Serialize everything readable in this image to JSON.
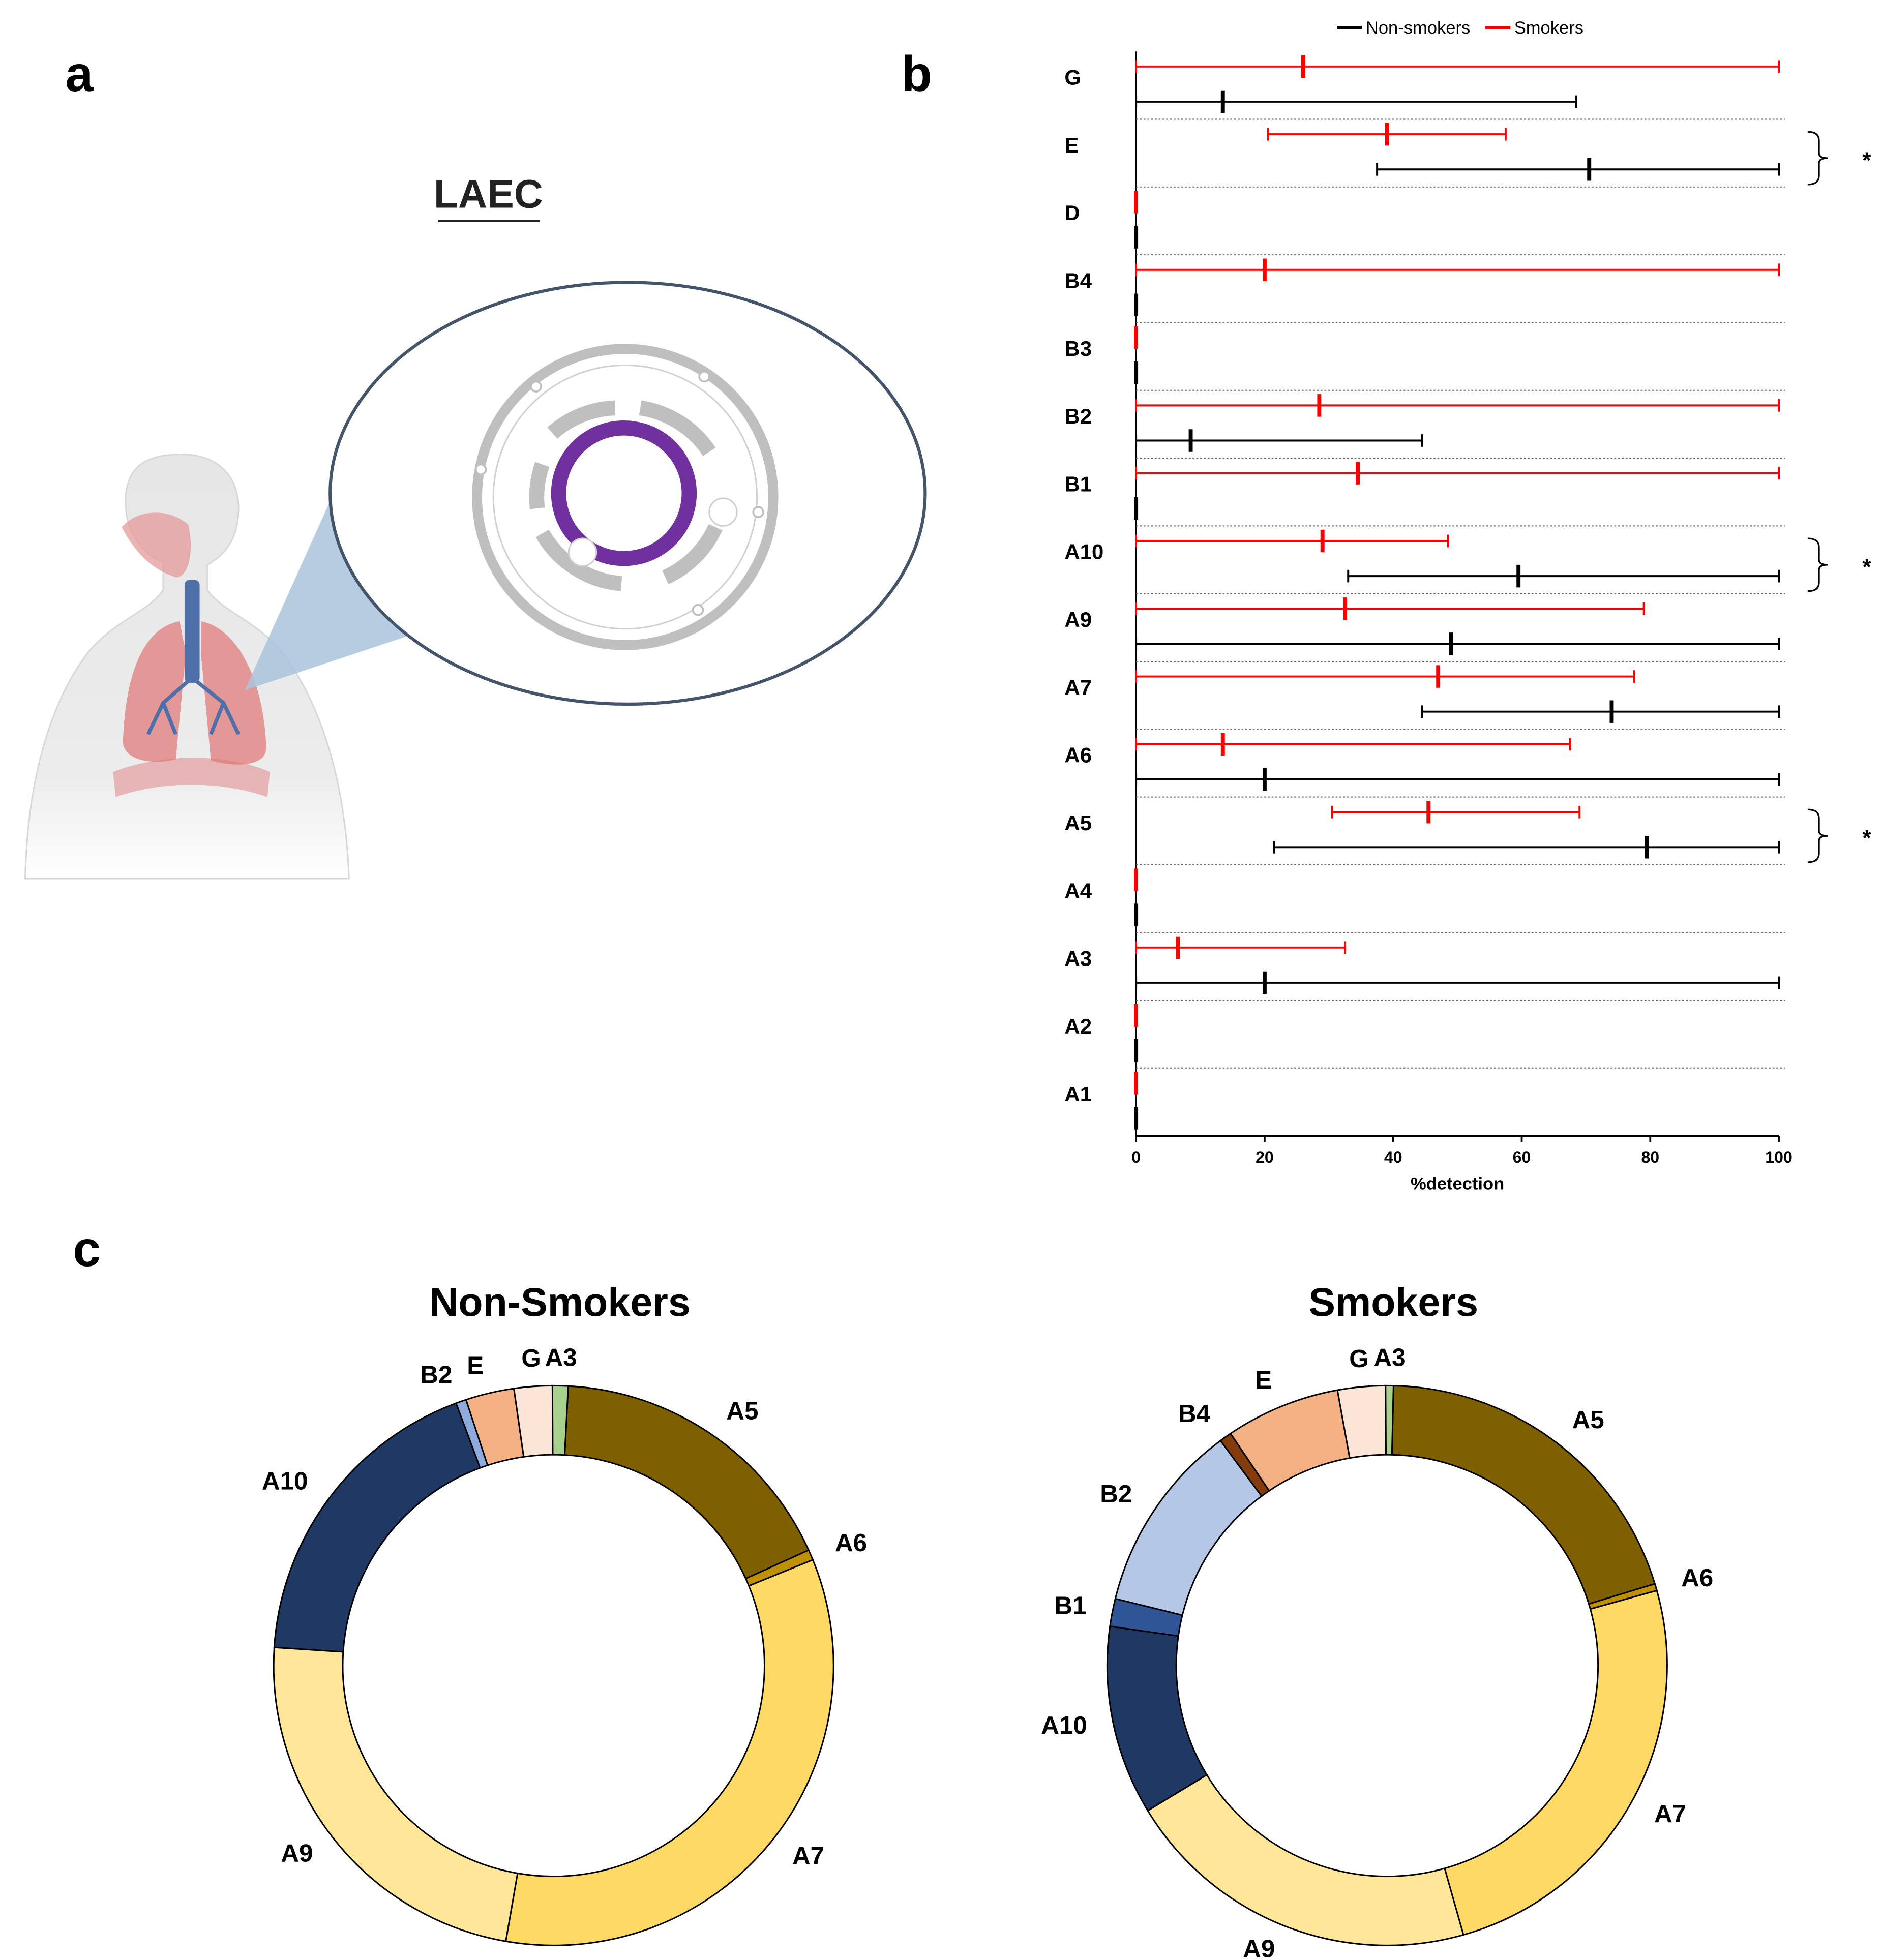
{
  "panels": [
    "a",
    "b",
    "c"
  ],
  "illustration": {
    "title": "LAEC"
  },
  "chart_data": [
    {
      "type": "range",
      "categories": [
        "G",
        "E",
        "D",
        "B4",
        "B3",
        "B2",
        "B1",
        "A10",
        "A9",
        "A7",
        "A6",
        "A5",
        "A4",
        "A3",
        "A2",
        "A1"
      ],
      "series": [
        {
          "name": "Non-smokers",
          "color": "#000000",
          "min": [
            0,
            37.5,
            0,
            0,
            0,
            0,
            0,
            33,
            0,
            44.5,
            0,
            21.5,
            0,
            0,
            0,
            0
          ],
          "median": [
            13.5,
            70.5,
            0,
            0,
            0,
            8.5,
            0,
            59.5,
            49,
            74,
            20,
            79.5,
            0,
            20,
            0,
            0
          ],
          "max": [
            68.5,
            100,
            0,
            0,
            0,
            44.5,
            0,
            100,
            100,
            100,
            100,
            100,
            0,
            100,
            0,
            0
          ]
        },
        {
          "name": "Smokers",
          "color": "#ff0000",
          "min": [
            0,
            20.5,
            0,
            0,
            0,
            0,
            0,
            0,
            0,
            0,
            0,
            30.5,
            0,
            0,
            0,
            0
          ],
          "median": [
            26,
            39,
            0,
            20,
            0,
            28.5,
            34.5,
            29,
            32.5,
            47,
            13.5,
            45.5,
            0,
            6.5,
            0,
            0
          ],
          "max": [
            100,
            57.5,
            0,
            100,
            0,
            100,
            100,
            48.5,
            79,
            77.5,
            67.5,
            69,
            0,
            32.5,
            0,
            0
          ]
        }
      ],
      "xlim": [
        0,
        100
      ],
      "xticks": [
        0,
        20,
        40,
        60,
        80,
        100
      ],
      "xlabel": "%detection",
      "legend": "top",
      "significant": [
        false,
        true,
        false,
        false,
        false,
        false,
        false,
        true,
        false,
        false,
        false,
        true,
        false,
        false,
        false,
        false
      ],
      "significance_label": "*"
    },
    {
      "type": "donut",
      "title": "Non-Smokers",
      "start_angle": 3,
      "categories": [
        "A5",
        "A6",
        "A7",
        "A9",
        "A10",
        "B2",
        "E",
        "G",
        "A3"
      ],
      "values": [
        17.4,
        0.6,
        33.9,
        23.3,
        18.3,
        0.6,
        2.8,
        2.2,
        0.9
      ],
      "colors": [
        "#7f6000",
        "#bf9000",
        "#ffd966",
        "#ffe699",
        "#203864",
        "#8faadc",
        "#f4b183",
        "#fbe5d6",
        "#a9d18e"
      ]
    },
    {
      "type": "donut",
      "title": "Smokers",
      "start_angle": 1.3,
      "categories": [
        "A5",
        "A6",
        "A7",
        "A9",
        "A10",
        "B1",
        "B2",
        "B4",
        "E",
        "G",
        "A3"
      ],
      "values": [
        19.9,
        0.4,
        24.9,
        20.7,
        10.9,
        1.6,
        11.0,
        0.7,
        6.6,
        2.75,
        0.45
      ],
      "colors": [
        "#7f6000",
        "#bf9000",
        "#ffd966",
        "#ffe699",
        "#203864",
        "#2f5597",
        "#b4c7e7",
        "#843c0c",
        "#f4b183",
        "#fbe5d6",
        "#a9d18e"
      ]
    }
  ]
}
